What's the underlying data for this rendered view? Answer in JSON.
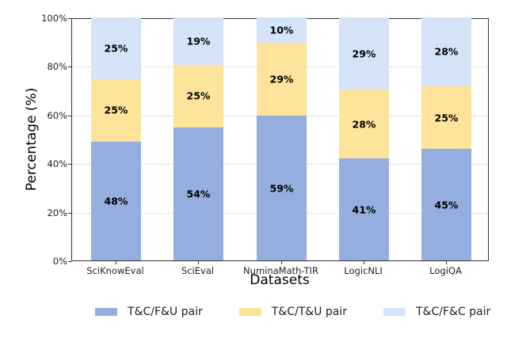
{
  "chart_data": {
    "type": "bar",
    "stacked": true,
    "title": "",
    "xlabel": "Datasets",
    "ylabel": "Percentage (%)",
    "ylim": [
      0,
      100
    ],
    "yticks": [
      "0%",
      "20%",
      "40%",
      "60%",
      "80%",
      "100%"
    ],
    "grid": "y dashed",
    "legend_position": "bottom",
    "categories": [
      "SciKnowEval",
      "SciEval",
      "NuminaMath-TIR",
      "LogicNLI",
      "LogiQA"
    ],
    "series": [
      {
        "name": "T&C/F&U pair",
        "color": "#94aedf",
        "values": [
          48,
          54,
          59,
          41,
          45
        ],
        "labels": [
          "48%",
          "54%",
          "59%",
          "41%",
          "45%"
        ]
      },
      {
        "name": "T&C/T&U pair",
        "color": "#fde49a",
        "values": [
          25,
          25,
          29,
          28,
          25
        ],
        "labels": [
          "25%",
          "25%",
          "29%",
          "28%",
          "25%"
        ]
      },
      {
        "name": "T&C/F&C pair",
        "color": "#d4e3f8",
        "values": [
          25,
          19,
          10,
          29,
          28
        ],
        "labels": [
          "25%",
          "19%",
          "10%",
          "29%",
          "28%"
        ]
      }
    ]
  },
  "axis": {
    "xlabel": "Datasets",
    "ylabel": "Percentage (%)",
    "yticks": [
      "0%",
      "20%",
      "40%",
      "60%",
      "80%",
      "100%"
    ],
    "xticks": [
      "SciKnowEval",
      "SciEval",
      "NuminaMath-TIR",
      "LogicNLI",
      "LogiQA"
    ]
  },
  "bars": [
    {
      "name": "SciKnowEval",
      "segments": [
        {
          "label": "48%",
          "bottom": 0,
          "height": 49
        },
        {
          "label": "25%",
          "bottom": 49,
          "height": 25.5
        },
        {
          "label": "25%",
          "bottom": 74.5,
          "height": 25.5
        }
      ]
    },
    {
      "name": "SciEval",
      "segments": [
        {
          "label": "54%",
          "bottom": 0,
          "height": 54.8
        },
        {
          "label": "25%",
          "bottom": 54.8,
          "height": 25.6
        },
        {
          "label": "19%",
          "bottom": 80.4,
          "height": 19.6
        }
      ]
    },
    {
      "name": "NuminaMath-TIR",
      "segments": [
        {
          "label": "59%",
          "bottom": 0,
          "height": 59.6
        },
        {
          "label": "29%",
          "bottom": 59.6,
          "height": 30
        },
        {
          "label": "10%",
          "bottom": 89.6,
          "height": 10.4
        }
      ]
    },
    {
      "name": "LogicNLI",
      "segments": [
        {
          "label": "41%",
          "bottom": 0,
          "height": 42
        },
        {
          "label": "28%",
          "bottom": 42,
          "height": 28.3
        },
        {
          "label": "29%",
          "bottom": 70.3,
          "height": 29.7
        }
      ]
    },
    {
      "name": "LogiQA",
      "segments": [
        {
          "label": "45%",
          "bottom": 0,
          "height": 45.8
        },
        {
          "label": "25%",
          "bottom": 45.8,
          "height": 25.9
        },
        {
          "label": "28%",
          "bottom": 71.7,
          "height": 28.3
        }
      ]
    }
  ],
  "legend": [
    {
      "label": "T&C/F&U pair",
      "color": "#94aedf"
    },
    {
      "label": "T&C/T&U pair",
      "color": "#fde49a"
    },
    {
      "label": "T&C/F&C pair",
      "color": "#d4e3f8"
    }
  ]
}
